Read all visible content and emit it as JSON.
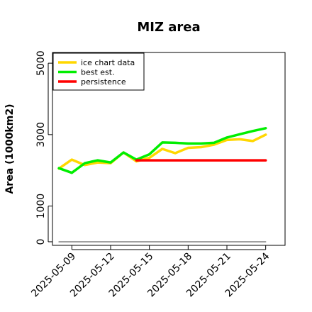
{
  "chart_data": {
    "type": "line",
    "title": "MIZ area",
    "xlabel": "",
    "ylabel": "Area (1000km2)",
    "x_start": "2025-05-08",
    "x_ticks": [
      "2025-05-09",
      "2025-05-12",
      "2025-05-15",
      "2025-05-18",
      "2025-05-21",
      "2025-05-24"
    ],
    "y_ticks": [
      0,
      1000,
      3000,
      5000
    ],
    "ylim": [
      -100,
      5300
    ],
    "xlim": [
      "2025-05-07T12:00",
      "2025-05-25T12:00"
    ],
    "grid": false,
    "legend_position": "top-left",
    "series": [
      {
        "name": "ice chart data",
        "color": "#ffd700",
        "x": [
          "2025-05-08",
          "2025-05-09",
          "2025-05-10",
          "2025-05-11",
          "2025-05-12",
          "2025-05-13",
          "2025-05-14",
          "2025-05-15",
          "2025-05-16",
          "2025-05-17",
          "2025-05-18",
          "2025-05-19",
          "2025-05-20",
          "2025-05-21",
          "2025-05-22",
          "2025-05-23",
          "2025-05-24"
        ],
        "values": [
          2050,
          2300,
          2150,
          2220,
          2200,
          2500,
          2250,
          2350,
          2600,
          2480,
          2630,
          2650,
          2720,
          2850,
          2870,
          2820,
          3000
        ]
      },
      {
        "name": "best est.",
        "color": "#00ee00",
        "x": [
          "2025-05-08",
          "2025-05-09",
          "2025-05-10",
          "2025-05-11",
          "2025-05-12",
          "2025-05-13",
          "2025-05-14",
          "2025-05-15",
          "2025-05-16",
          "2025-05-17",
          "2025-05-18",
          "2025-05-19",
          "2025-05-20",
          "2025-05-21",
          "2025-05-22",
          "2025-05-23",
          "2025-05-24"
        ],
        "values": [
          2060,
          1930,
          2200,
          2280,
          2220,
          2500,
          2300,
          2450,
          2780,
          2770,
          2750,
          2750,
          2770,
          2920,
          3010,
          3100,
          3180
        ]
      },
      {
        "name": "persistence",
        "color": "#ff0000",
        "x": [
          "2025-05-14",
          "2025-05-15",
          "2025-05-16",
          "2025-05-17",
          "2025-05-18",
          "2025-05-19",
          "2025-05-20",
          "2025-05-21",
          "2025-05-22",
          "2025-05-23",
          "2025-05-24"
        ],
        "values": [
          2280,
          2280,
          2280,
          2280,
          2280,
          2280,
          2280,
          2280,
          2280,
          2280,
          2280
        ]
      },
      {
        "color": "#808080",
        "x": [
          "2025-05-08",
          "2025-05-24"
        ],
        "values": [
          0,
          0
        ]
      }
    ]
  }
}
